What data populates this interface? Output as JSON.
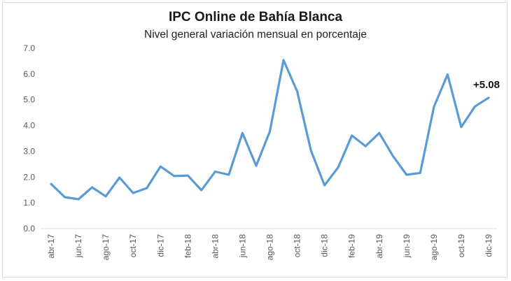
{
  "chart_data": {
    "type": "line",
    "title": "IPC Online de Bahía Blanca",
    "subtitle": "Nivel general variación mensual en porcentaje",
    "xlabel": "",
    "ylabel": "",
    "ylim": [
      0,
      7
    ],
    "yticks": [
      "0.0",
      "1.0",
      "2.0",
      "3.0",
      "4.0",
      "5.0",
      "6.0",
      "7.0"
    ],
    "grid": false,
    "categories": [
      "abr-17",
      "may-17",
      "jun-17",
      "jul-17",
      "ago-17",
      "sep-17",
      "oct-17",
      "nov-17",
      "dic-17",
      "ene-18",
      "feb-18",
      "mar-18",
      "abr-18",
      "may-18",
      "jun-18",
      "jul-18",
      "ago-18",
      "sep-18",
      "oct-18",
      "nov-18",
      "dic-18",
      "ene-19",
      "feb-19",
      "mar-19",
      "abr-19",
      "may-19",
      "jun-19",
      "jul-19",
      "ago-19",
      "sep-19",
      "oct-19",
      "nov-19",
      "dic-19"
    ],
    "tick_labels": [
      "abr-17",
      "jun-17",
      "ago-17",
      "oct-17",
      "dic-17",
      "feb-18",
      "abr-18",
      "jun-18",
      "ago-18",
      "oct-18",
      "dic-18",
      "feb-19",
      "abr-19",
      "jun-19",
      "ago-19",
      "oct-19",
      "dic-19"
    ],
    "series": [
      {
        "color": "#5b9bd5",
        "values": [
          1.73,
          1.22,
          1.14,
          1.6,
          1.25,
          1.98,
          1.38,
          1.57,
          2.41,
          2.04,
          2.06,
          1.49,
          2.21,
          2.09,
          3.71,
          2.44,
          3.77,
          6.54,
          5.32,
          3.04,
          1.68,
          2.38,
          3.61,
          3.2,
          3.71,
          2.82,
          2.09,
          2.16,
          4.73,
          5.98,
          3.94,
          4.74,
          5.08
        ]
      }
    ],
    "annotation": {
      "text": "+5.08",
      "index": 32
    }
  }
}
